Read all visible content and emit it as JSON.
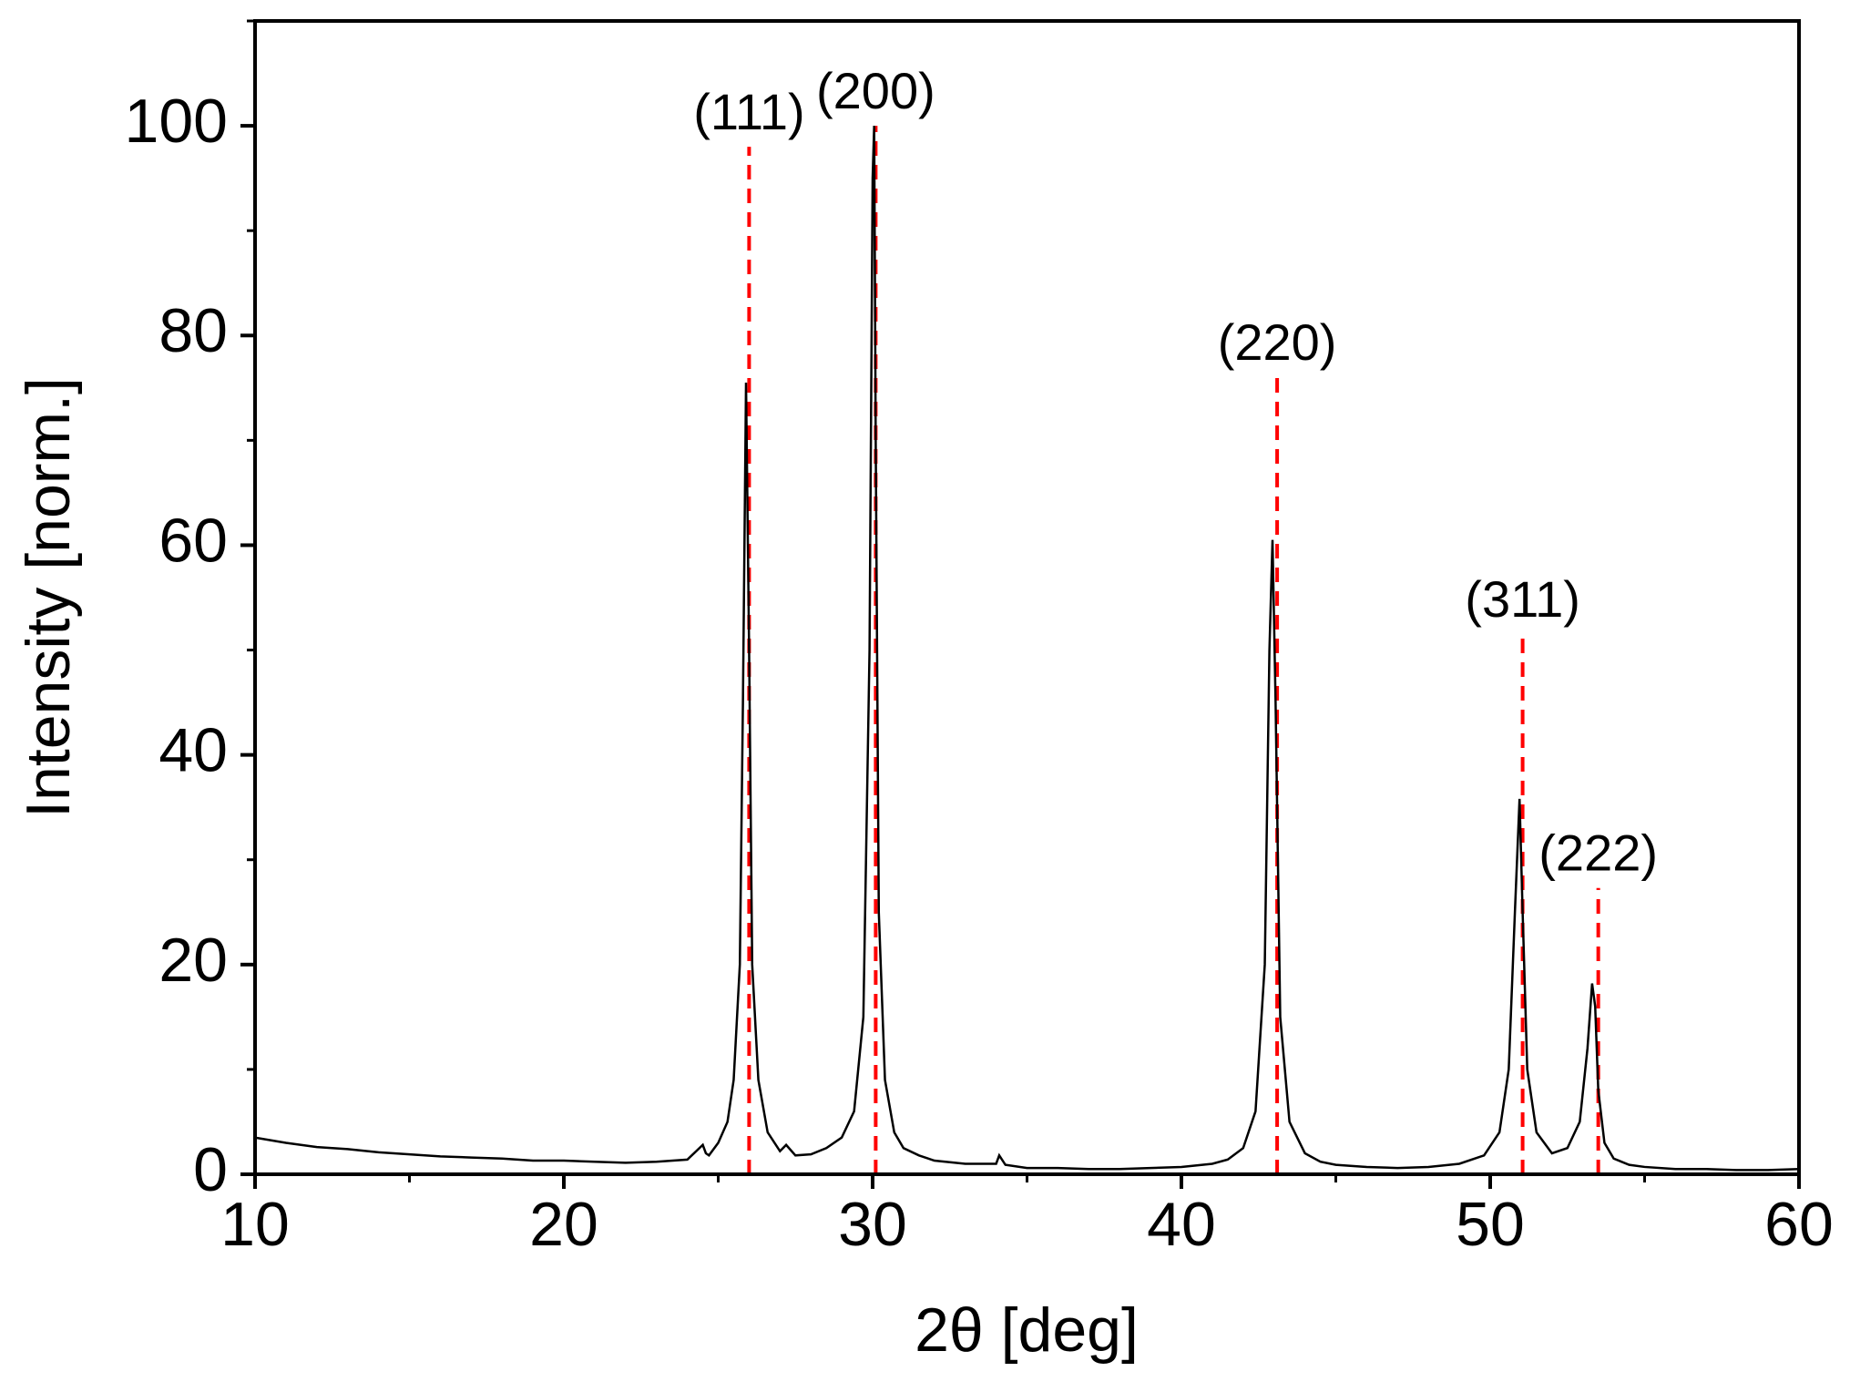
{
  "chart_data": {
    "type": "line",
    "x_label": "2θ [deg]",
    "y_label": "Intensity [norm.]",
    "x": [
      10,
      11,
      12,
      13,
      14,
      15,
      16,
      17,
      18,
      19,
      20,
      21,
      22,
      23,
      24,
      24.5,
      24.6,
      24.7,
      25,
      25.3,
      25.5,
      25.7,
      25.8,
      25.9,
      26.0,
      26.1,
      26.3,
      26.6,
      27,
      27.2,
      27.5,
      28,
      28.5,
      29,
      29.4,
      29.7,
      29.9,
      30.0,
      30.05,
      30.1,
      30.2,
      30.4,
      30.7,
      31,
      31.5,
      32,
      33,
      34,
      34.1,
      34.3,
      35,
      36,
      37,
      38,
      39,
      40,
      41,
      41.5,
      42,
      42.4,
      42.7,
      42.85,
      42.95,
      43.05,
      43.2,
      43.5,
      44,
      44.5,
      45,
      46,
      47,
      48,
      49,
      49.8,
      50.3,
      50.6,
      50.8,
      50.95,
      51.05,
      51.2,
      51.5,
      52,
      52.5,
      52.9,
      53.15,
      53.3,
      53.4,
      53.5,
      53.7,
      54,
      54.5,
      55,
      56,
      57,
      58,
      59,
      60
    ],
    "series": [
      {
        "color": "#000000",
        "values": [
          3.5,
          3.0,
          2.6,
          2.4,
          2.1,
          1.9,
          1.7,
          1.6,
          1.5,
          1.3,
          1.3,
          1.2,
          1.1,
          1.2,
          1.4,
          2.8,
          2,
          1.8,
          3,
          5,
          9,
          20,
          45,
          75.5,
          50,
          20,
          9,
          4,
          2.2,
          2.8,
          1.8,
          1.9,
          2.5,
          3.5,
          6,
          15,
          50,
          95,
          100,
          70,
          25,
          9,
          4,
          2.5,
          1.8,
          1.3,
          1.0,
          1.0,
          1.8,
          0.9,
          0.6,
          0.6,
          0.5,
          0.5,
          0.6,
          0.7,
          1.0,
          1.4,
          2.5,
          6,
          20,
          50,
          60.5,
          45,
          15,
          5,
          2,
          1.2,
          0.9,
          0.7,
          0.6,
          0.7,
          1.0,
          1.8,
          4,
          10,
          25,
          35.8,
          25,
          10,
          4,
          2,
          2.5,
          5,
          12,
          18.2,
          16,
          8,
          3,
          1.5,
          0.9,
          0.7,
          0.5,
          0.5,
          0.4,
          0.4,
          0.5
        ]
      }
    ],
    "reference_lines": [
      {
        "label": "(111)",
        "x": 26.0,
        "top": 98,
        "color": "#ff0000"
      },
      {
        "label": "(200)",
        "x": 30.1,
        "top": 100,
        "color": "#ff0000"
      },
      {
        "label": "(220)",
        "x": 43.1,
        "top": 76,
        "color": "#ff0000"
      },
      {
        "label": "(311)",
        "x": 51.05,
        "top": 51.5,
        "color": "#ff0000"
      },
      {
        "label": "(222)",
        "x": 53.5,
        "top": 27.3,
        "color": "#ff0000"
      }
    ],
    "xlim": [
      10,
      60
    ],
    "xticks": [
      10,
      20,
      30,
      40,
      50,
      60
    ],
    "xminor_ticks": [
      15,
      25,
      35,
      45,
      55
    ],
    "ylim": [
      0,
      110
    ],
    "yticks": [
      0,
      20,
      40,
      60,
      80,
      100
    ],
    "yminor_ticks": [
      10,
      30,
      50,
      70,
      90,
      110
    ]
  }
}
